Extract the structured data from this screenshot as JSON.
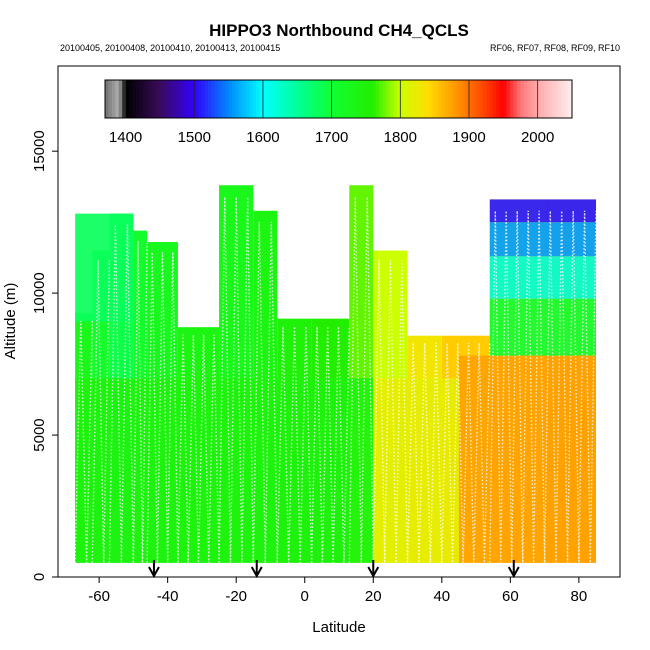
{
  "chart_data": {
    "type": "heatmap",
    "title": "HIPPO3 Northbound CH4_QCLS",
    "subtitle_left": "20100405, 20100408, 20100410, 20100413, 20100415",
    "subtitle_right": "RF06, RF07, RF08, RF09, RF10",
    "xlabel": "Latitude",
    "ylabel": "Altitude (m)",
    "xlim": [
      -72,
      92
    ],
    "ylim": [
      0,
      18000
    ],
    "x_ticks": [
      -60,
      -40,
      -20,
      0,
      20,
      40,
      60,
      80
    ],
    "x_tick_labels": [
      "-60",
      "-40",
      "-20",
      "0",
      "20",
      "40",
      "60",
      "80"
    ],
    "y_ticks": [
      0,
      5000,
      10000,
      15000
    ],
    "y_tick_labels": [
      "0",
      "5000",
      "10000",
      "15000"
    ],
    "colorbar": {
      "range": [
        1370,
        2050
      ],
      "ticks": [
        1400,
        1500,
        1600,
        1700,
        1800,
        1900,
        2000
      ],
      "tick_labels": [
        "1400",
        "1500",
        "1600",
        "1700",
        "1800",
        "1900",
        "2000"
      ],
      "stops": [
        {
          "value": 1370,
          "color": "#6e6e6e"
        },
        {
          "value": 1390,
          "color": "#b0b0b0"
        },
        {
          "value": 1400,
          "color": "#000000"
        },
        {
          "value": 1450,
          "color": "#3a0a5a"
        },
        {
          "value": 1500,
          "color": "#3300ff"
        },
        {
          "value": 1550,
          "color": "#0088ff"
        },
        {
          "value": 1600,
          "color": "#00ffff"
        },
        {
          "value": 1650,
          "color": "#00ff99"
        },
        {
          "value": 1700,
          "color": "#11ff33"
        },
        {
          "value": 1760,
          "color": "#22ee00"
        },
        {
          "value": 1800,
          "color": "#ccff00"
        },
        {
          "value": 1840,
          "color": "#ffdd00"
        },
        {
          "value": 1880,
          "color": "#ff9900"
        },
        {
          "value": 1930,
          "color": "#ff3300"
        },
        {
          "value": 1950,
          "color": "#ff0000"
        },
        {
          "value": 1975,
          "color": "#ff7777"
        },
        {
          "value": 2000,
          "color": "#ffaaaa"
        },
        {
          "value": 2050,
          "color": "#ffeeee"
        }
      ]
    },
    "flight_segments": [
      {
        "lat_start": -67,
        "lat_end": -62,
        "alt_top": 9300,
        "ch4": 1730
      },
      {
        "lat_start": -62,
        "lat_end": -57,
        "alt_top": 11500,
        "ch4": 1710
      },
      {
        "lat_start": -57,
        "lat_end": -50,
        "alt_top": 12800,
        "ch4": 1690
      },
      {
        "lat_start": -50,
        "lat_end": -46,
        "alt_top": 12200,
        "ch4": 1710
      },
      {
        "lat_start": -46,
        "lat_end": -37,
        "alt_top": 11800,
        "ch4": 1725
      },
      {
        "lat_start": -37,
        "lat_end": -25,
        "alt_top": 8800,
        "ch4": 1740
      },
      {
        "lat_start": -25,
        "lat_end": -15,
        "alt_top": 13800,
        "ch4": 1730
      },
      {
        "lat_start": -15,
        "lat_end": -8,
        "alt_top": 12900,
        "ch4": 1740
      },
      {
        "lat_start": -8,
        "lat_end": 2,
        "alt_top": 9100,
        "ch4": 1750
      },
      {
        "lat_start": 2,
        "lat_end": 13,
        "alt_top": 9100,
        "ch4": 1760
      },
      {
        "lat_start": 13,
        "lat_end": 20,
        "alt_top": 13800,
        "ch4": 1775
      },
      {
        "lat_start": 20,
        "lat_end": 30,
        "alt_top": 11500,
        "ch4": 1800
      },
      {
        "lat_start": 30,
        "lat_end": 40,
        "alt_top": 8500,
        "ch4": 1830
      },
      {
        "lat_start": 40,
        "lat_end": 54,
        "alt_top": 8500,
        "ch4": 1850
      },
      {
        "lat_start": 54,
        "lat_end": 70,
        "alt_top": 13300,
        "ch4": 1860
      },
      {
        "lat_start": 70,
        "lat_end": 85,
        "alt_top": 13300,
        "ch4": 1870
      }
    ],
    "layers": [
      {
        "lat_start": -67,
        "lat_end": 20,
        "alt_bottom": 0,
        "alt_top": 7000,
        "ch4": 1745
      },
      {
        "lat_start": 20,
        "lat_end": 45,
        "alt_bottom": 0,
        "alt_top": 7000,
        "ch4": 1820
      },
      {
        "lat_start": 45,
        "lat_end": 85,
        "alt_bottom": 0,
        "alt_top": 7800,
        "ch4": 1875
      },
      {
        "lat_start": 54,
        "lat_end": 85,
        "alt_bottom": 7800,
        "alt_top": 9800,
        "ch4": 1700
      },
      {
        "lat_start": 54,
        "lat_end": 85,
        "alt_bottom": 9800,
        "alt_top": 11300,
        "ch4": 1620
      },
      {
        "lat_start": 54,
        "lat_end": 85,
        "alt_bottom": 11300,
        "alt_top": 12500,
        "ch4": 1560
      },
      {
        "lat_start": 54,
        "lat_end": 85,
        "alt_bottom": 12500,
        "alt_top": 13300,
        "ch4": 1510
      },
      {
        "lat_start": -67,
        "lat_end": -50,
        "alt_bottom": 9000,
        "alt_top": 12800,
        "ch4": 1680
      }
    ],
    "arrow_markers_lat": [
      -44,
      -14,
      20,
      61
    ]
  }
}
